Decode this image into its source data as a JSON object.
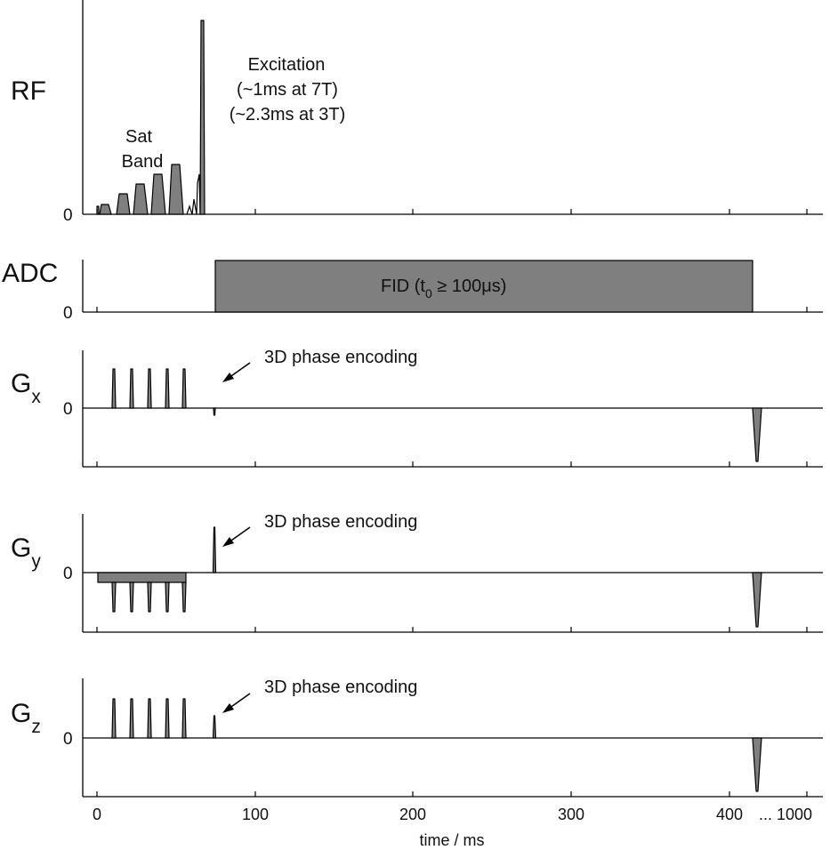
{
  "rows": {
    "rf": {
      "label": "RF",
      "zero": "0"
    },
    "adc": {
      "label": "ADC",
      "zero": "0"
    },
    "gx": {
      "label": "G",
      "sub": "x",
      "zero": "0"
    },
    "gy": {
      "label": "G",
      "sub": "y",
      "zero": "0"
    },
    "gz": {
      "label": "G",
      "sub": "z",
      "zero": "0"
    }
  },
  "annotations": {
    "sat_band": [
      "Sat",
      "Band"
    ],
    "excitation": [
      "Excitation",
      "(~1ms at 7T)",
      "(~2.3ms at 3T)"
    ],
    "fid_prefix": "FID (t",
    "fid_sub": "0",
    "fid_suffix": " ≥ 100μs)",
    "phase_encoding": "3D phase encoding"
  },
  "time_axis": {
    "label": "time / ms",
    "tick_labels": [
      "0",
      "100",
      "200",
      "300",
      "400",
      "... 1000"
    ]
  },
  "colors": {
    "fill": "#7f7f7f",
    "line": "#000000"
  }
}
